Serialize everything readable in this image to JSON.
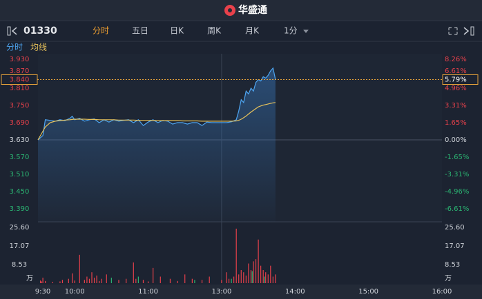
{
  "header": {
    "logo": "华盛通",
    "symbol": "01330",
    "tabs": [
      "分时",
      "五日",
      "日K",
      "周K",
      "月K"
    ],
    "interval": "1分",
    "active_tab": 0
  },
  "chart_data": [
    {
      "type": "line",
      "x": [
        0,
        4,
        6,
        10,
        14,
        18,
        22,
        26,
        28,
        30,
        34,
        38,
        42,
        46,
        50,
        54,
        58,
        62,
        66,
        70,
        74,
        78,
        82,
        86,
        90,
        94,
        98,
        102,
        106,
        110,
        114,
        118,
        122,
        126,
        130,
        134,
        138,
        142,
        146,
        150,
        154,
        158,
        162,
        164,
        166,
        168,
        170,
        172,
        174,
        176,
        178,
        180,
        182,
        184,
        186,
        188,
        190,
        192,
        194
      ],
      "series": [
        {
          "name": "分时",
          "color": "#4ea6f2",
          "values": [
            3.63,
            3.645,
            3.7,
            3.698,
            3.695,
            3.7,
            3.697,
            3.705,
            3.712,
            3.7,
            3.705,
            3.695,
            3.7,
            3.703,
            3.69,
            3.7,
            3.692,
            3.7,
            3.695,
            3.698,
            3.7,
            3.69,
            3.7,
            3.68,
            3.692,
            3.7,
            3.69,
            3.698,
            3.695,
            3.685,
            3.69,
            3.69,
            3.685,
            3.69,
            3.69,
            3.68,
            3.692,
            3.69,
            3.69,
            3.69,
            3.69,
            3.693,
            3.7,
            3.73,
            3.77,
            3.76,
            3.8,
            3.79,
            3.81,
            3.8,
            3.83,
            3.84,
            3.835,
            3.85,
            3.845,
            3.855,
            3.87,
            3.88,
            3.84
          ]
        },
        {
          "name": "均线",
          "color": "#e8c25a",
          "values": [
            3.63,
            3.66,
            3.675,
            3.69,
            3.695,
            3.697,
            3.699,
            3.7,
            3.701,
            3.702,
            3.702,
            3.702,
            3.701,
            3.701,
            3.7,
            3.7,
            3.7,
            3.7,
            3.699,
            3.699,
            3.699,
            3.699,
            3.698,
            3.698,
            3.698,
            3.698,
            3.697,
            3.697,
            3.697,
            3.697,
            3.697,
            3.696,
            3.696,
            3.696,
            3.696,
            3.695,
            3.695,
            3.695,
            3.695,
            3.695,
            3.695,
            3.695,
            3.696,
            3.698,
            3.702,
            3.707,
            3.713,
            3.72,
            3.727,
            3.733,
            3.739,
            3.745,
            3.748,
            3.751,
            3.753,
            3.755,
            3.757,
            3.759,
            3.76
          ]
        }
      ],
      "xlim": [
        0,
        330
      ],
      "ylim": [
        3.33,
        3.93
      ],
      "yticks": [
        {
          "value": 3.93,
          "label": "3.930"
        },
        {
          "value": 3.87,
          "label": "3.870"
        },
        {
          "value": 3.81,
          "label": "3.810"
        },
        {
          "value": 3.75,
          "label": "3.750"
        },
        {
          "value": 3.69,
          "label": "3.690"
        },
        {
          "value": 3.63,
          "label": "3.630"
        },
        {
          "value": 3.57,
          "label": "3.570"
        },
        {
          "value": 3.51,
          "label": "3.510"
        },
        {
          "value": 3.45,
          "label": "3.450"
        },
        {
          "value": 3.39,
          "label": "3.390"
        }
      ],
      "y2lim": [
        -8.26,
        8.26
      ],
      "y2ticks": [
        {
          "value": 8.26,
          "label": "8.26%"
        },
        {
          "value": 6.61,
          "label": "6.61%"
        },
        {
          "value": 4.96,
          "label": "4.96%"
        },
        {
          "value": 3.31,
          "label": "3.31%"
        },
        {
          "value": 1.65,
          "label": "1.65%"
        },
        {
          "value": 0,
          "label": "0.00%"
        },
        {
          "value": -1.65,
          "label": "-1.65%"
        },
        {
          "value": -3.31,
          "label": "-3.31%"
        },
        {
          "value": -4.96,
          "label": "-4.96%"
        },
        {
          "value": -6.61,
          "label": "-6.61%"
        }
      ],
      "current": {
        "value": 3.84,
        "label": "3.840",
        "pct": 5.79,
        "pct_label": "5.79%"
      }
    },
    {
      "type": "bar",
      "xlim": [
        0,
        330
      ],
      "xticks": [
        {
          "value": 0,
          "label": "9:30"
        },
        {
          "value": 30,
          "label": "10:00"
        },
        {
          "value": 90,
          "label": "11:00"
        },
        {
          "value": 150,
          "label": "13:00"
        },
        {
          "value": 210,
          "label": "14:00"
        },
        {
          "value": 270,
          "label": "15:00"
        },
        {
          "value": 330,
          "label": "16:00"
        }
      ],
      "ylim": [
        0,
        25.6
      ],
      "yticks": [
        {
          "value": 25.6,
          "label": "25.60"
        },
        17.07,
        8.53
      ],
      "y_unit": "万",
      "series": [
        {
          "color": "#e8414b",
          "x": [
            2,
            3,
            4,
            6,
            12,
            18,
            20,
            25,
            28,
            30,
            34,
            38,
            40,
            42,
            44,
            46,
            48,
            50,
            52,
            56,
            66,
            72,
            78,
            80,
            86,
            90,
            94,
            100,
            108,
            114,
            120,
            126,
            134,
            140,
            150,
            154,
            156,
            160,
            162,
            164,
            166,
            168,
            170,
            172,
            174,
            176,
            178,
            180,
            182,
            184,
            186,
            188,
            190,
            192,
            194
          ],
          "values": [
            1.2,
            0.8,
            2.5,
            1.0,
            0.6,
            0.8,
            1.5,
            2.0,
            4.5,
            1.2,
            13.0,
            1.5,
            3.0,
            2.0,
            5.0,
            2.5,
            3.5,
            1.0,
            2.0,
            4.0,
            1.5,
            2.0,
            9.5,
            2.0,
            1.5,
            0.8,
            7.0,
            3.0,
            2.0,
            1.0,
            4.0,
            2.0,
            1.5,
            3.0,
            1.5,
            5.0,
            2.0,
            3.0,
            25.0,
            4.0,
            6.0,
            5.0,
            3.5,
            9.0,
            6.0,
            10.0,
            11.0,
            20.0,
            8.0,
            6.0,
            5.0,
            4.0,
            8.0,
            3.0,
            4.0
          ]
        },
        {
          "color": "#2bb673",
          "x": [
            60,
            82,
            128,
            158,
            175,
            185
          ],
          "values": [
            2.5,
            3.0,
            1.5,
            2.0,
            5.5,
            3.0
          ]
        }
      ]
    }
  ]
}
